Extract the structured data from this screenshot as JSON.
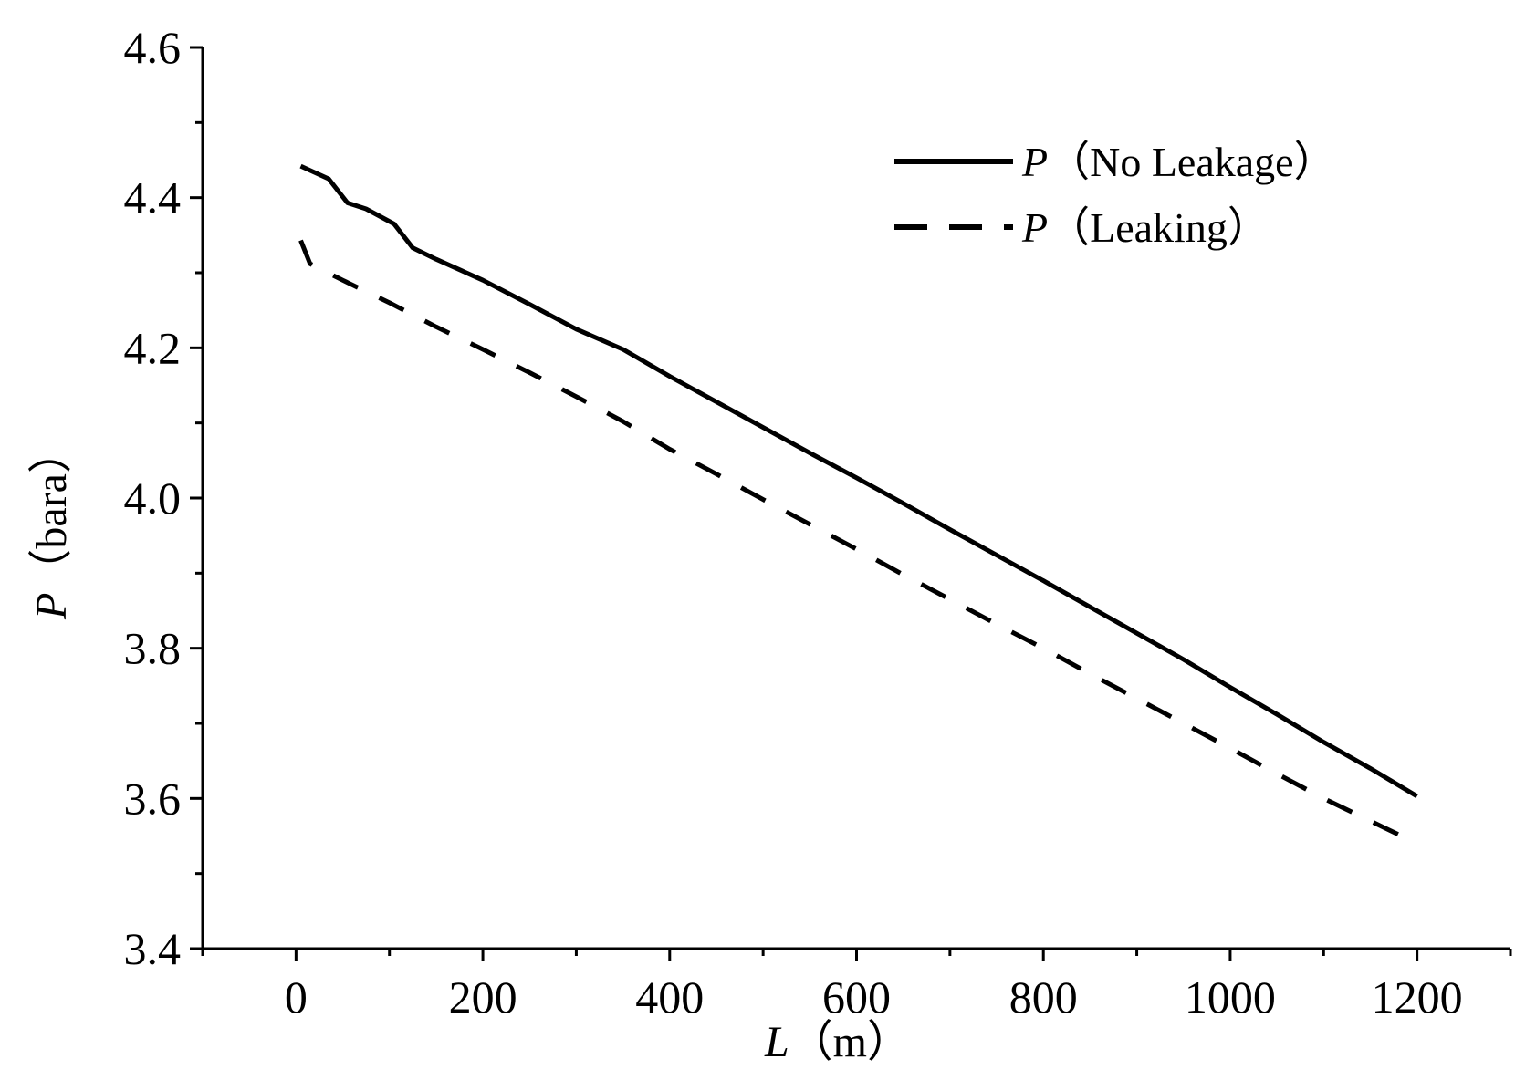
{
  "chart_data": {
    "type": "line",
    "title": "",
    "xlabel": {
      "symbol": "L",
      "unit": "（m）"
    },
    "ylabel": {
      "symbol": "P",
      "unit": "（bara）"
    },
    "xlim": [
      -100,
      1300
    ],
    "ylim": [
      3.4,
      4.6
    ],
    "xticks": [
      0,
      200,
      400,
      600,
      800,
      1000,
      1200
    ],
    "yticks": [
      3.4,
      3.6,
      3.8,
      4.0,
      4.2,
      4.4,
      4.6
    ],
    "ytick_labels": [
      "3.4",
      "3.6",
      "3.8",
      "4.0",
      "4.2",
      "4.4",
      "4.6"
    ],
    "legend_position": "top-right",
    "grid": false,
    "series": [
      {
        "name": "P（No Leakage）",
        "name_symbol": "P",
        "name_text": "（No Leakage）",
        "style": "solid",
        "color": "#000000",
        "x": [
          5,
          35,
          55,
          75,
          105,
          125,
          150,
          200,
          250,
          300,
          350,
          400,
          450,
          500,
          550,
          600,
          650,
          700,
          750,
          800,
          850,
          900,
          950,
          1000,
          1050,
          1100,
          1150,
          1200
        ],
        "y": [
          4.442,
          4.425,
          4.393,
          4.385,
          4.365,
          4.333,
          4.318,
          4.29,
          4.258,
          4.225,
          4.198,
          4.162,
          4.128,
          4.094,
          4.06,
          4.027,
          3.993,
          3.958,
          3.924,
          3.89,
          3.855,
          3.82,
          3.785,
          3.748,
          3.712,
          3.675,
          3.64,
          3.603
        ]
      },
      {
        "name": "P（Leaking）",
        "name_symbol": "P",
        "name_text": "（Leaking）",
        "style": "dashed",
        "color": "#000000",
        "x": [
          5,
          15,
          50,
          100,
          150,
          200,
          250,
          300,
          350,
          400,
          450,
          500,
          550,
          600,
          650,
          700,
          750,
          800,
          850,
          900,
          950,
          1000,
          1050,
          1100,
          1150,
          1200
        ],
        "y": [
          4.343,
          4.312,
          4.29,
          4.26,
          4.228,
          4.198,
          4.167,
          4.135,
          4.102,
          4.065,
          4.032,
          3.998,
          3.965,
          3.932,
          3.898,
          3.865,
          3.832,
          3.8,
          3.766,
          3.733,
          3.7,
          3.667,
          3.633,
          3.6,
          3.57,
          3.54
        ]
      }
    ]
  }
}
